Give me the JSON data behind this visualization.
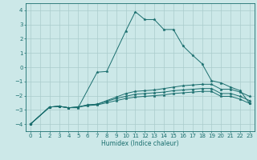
{
  "background_color": "#cce8e8",
  "grid_color": "#aacccc",
  "line_color": "#1a6e6e",
  "xlabel": "Humidex (Indice chaleur)",
  "xlim": [
    -0.5,
    23.5
  ],
  "ylim": [
    -4.5,
    4.5
  ],
  "xticks": [
    0,
    1,
    2,
    3,
    4,
    5,
    6,
    7,
    8,
    9,
    10,
    11,
    12,
    13,
    14,
    15,
    16,
    17,
    18,
    19,
    20,
    21,
    22,
    23
  ],
  "yticks": [
    -4,
    -3,
    -2,
    -1,
    0,
    1,
    2,
    3,
    4
  ],
  "figsize": [
    3.2,
    2.0
  ],
  "dpi": 100,
  "curves": [
    {
      "x": [
        0,
        2,
        3,
        4,
        5,
        7,
        8,
        10,
        11,
        12,
        13,
        14,
        15,
        16,
        17,
        18,
        19,
        20,
        21,
        22,
        23
      ],
      "y": [
        -4.0,
        -2.8,
        -2.75,
        -2.85,
        -2.85,
        -0.35,
        -0.3,
        2.55,
        3.9,
        3.35,
        3.35,
        2.65,
        2.65,
        1.5,
        0.85,
        0.25,
        -0.95,
        -1.1,
        -1.4,
        -1.65,
        -2.55
      ]
    },
    {
      "x": [
        0,
        2,
        3,
        4,
        5,
        6,
        7,
        8,
        9,
        10,
        11,
        12,
        13,
        14,
        15,
        16,
        17,
        18,
        19,
        20,
        21,
        22,
        23
      ],
      "y": [
        -4.0,
        -2.8,
        -2.75,
        -2.85,
        -2.8,
        -2.65,
        -2.6,
        -2.35,
        -2.1,
        -1.85,
        -1.7,
        -1.65,
        -1.6,
        -1.5,
        -1.4,
        -1.3,
        -1.25,
        -1.2,
        -1.2,
        -1.55,
        -1.55,
        -1.75,
        -2.05
      ]
    },
    {
      "x": [
        0,
        2,
        3,
        4,
        5,
        6,
        7,
        8,
        9,
        10,
        11,
        12,
        13,
        14,
        15,
        16,
        17,
        18,
        19,
        20,
        21,
        22,
        23
      ],
      "y": [
        -4.0,
        -2.8,
        -2.75,
        -2.85,
        -2.8,
        -2.65,
        -2.6,
        -2.4,
        -2.2,
        -2.05,
        -1.9,
        -1.85,
        -1.8,
        -1.75,
        -1.65,
        -1.6,
        -1.55,
        -1.5,
        -1.5,
        -1.85,
        -1.85,
        -2.05,
        -2.35
      ]
    },
    {
      "x": [
        0,
        2,
        3,
        4,
        5,
        6,
        7,
        8,
        9,
        10,
        11,
        12,
        13,
        14,
        15,
        16,
        17,
        18,
        19,
        20,
        21,
        22,
        23
      ],
      "y": [
        -4.0,
        -2.8,
        -2.75,
        -2.85,
        -2.8,
        -2.7,
        -2.65,
        -2.5,
        -2.35,
        -2.2,
        -2.1,
        -2.05,
        -2.0,
        -1.95,
        -1.85,
        -1.8,
        -1.75,
        -1.7,
        -1.7,
        -2.05,
        -2.05,
        -2.25,
        -2.55
      ]
    }
  ]
}
